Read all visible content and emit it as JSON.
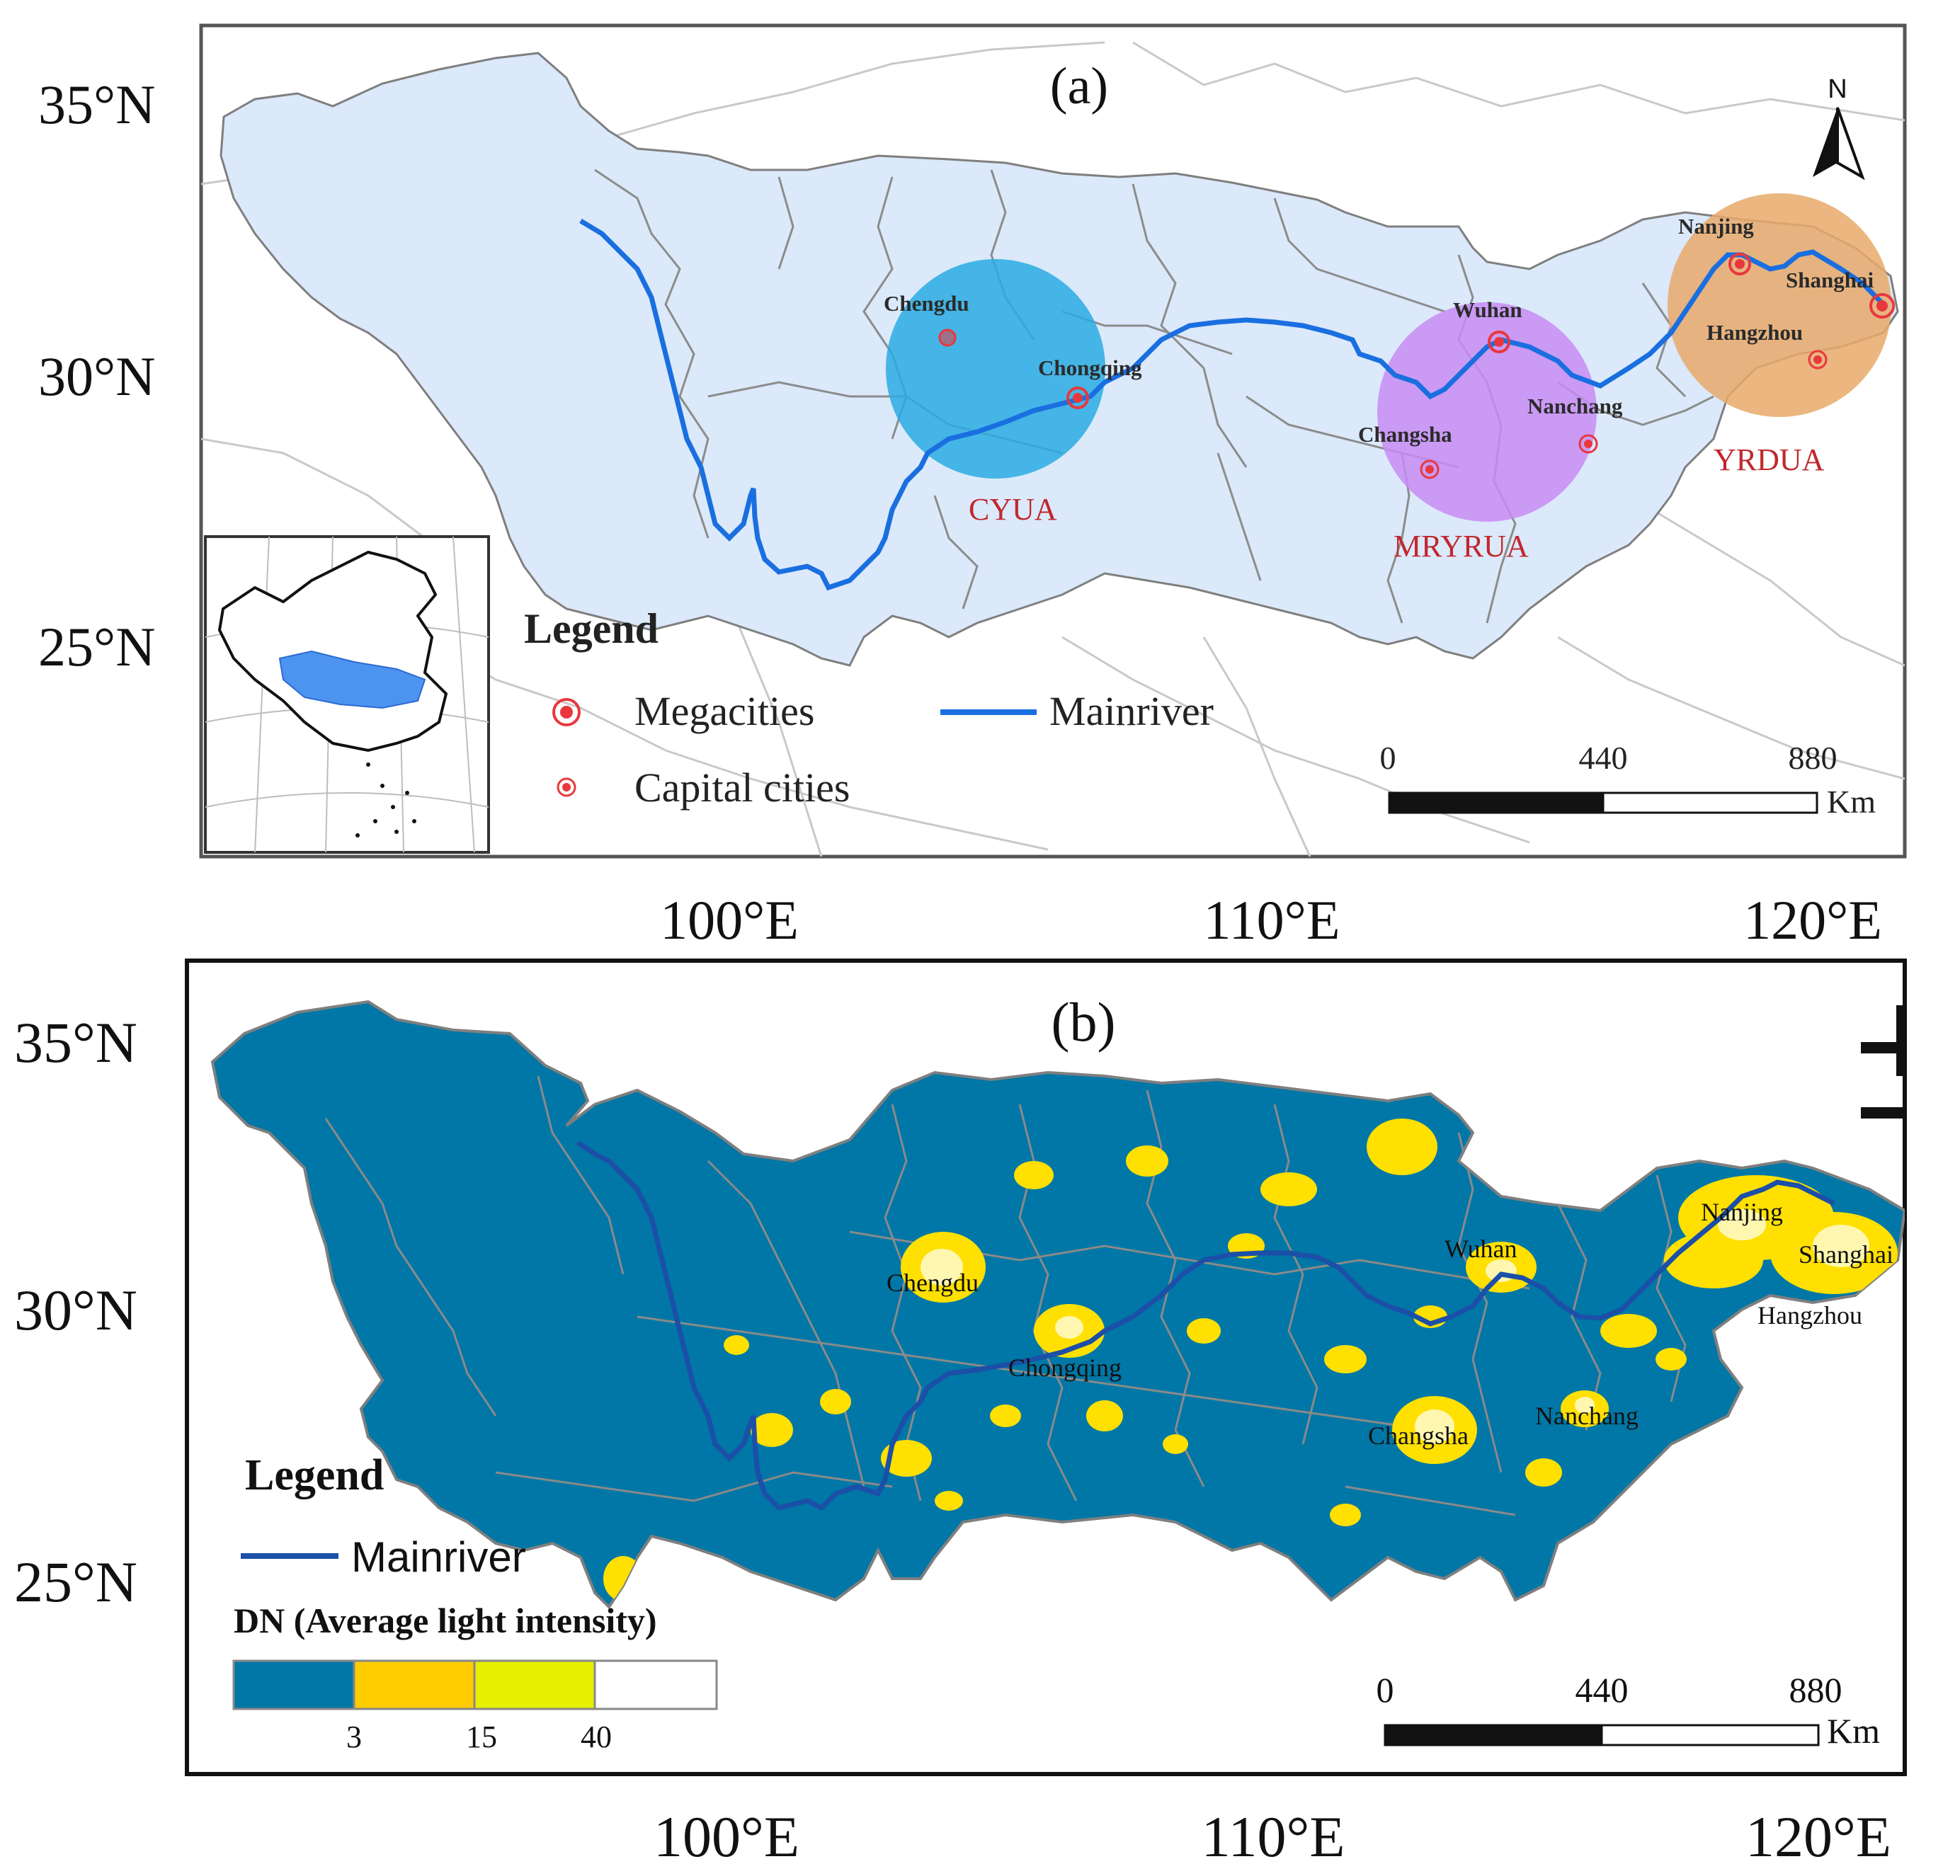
{
  "panel_a": {
    "label": "(a)",
    "north_label": "N",
    "lat_labels": [
      "35°N",
      "30°N",
      "25°N"
    ],
    "lon_labels": [
      "100°E",
      "110°E",
      "120°E"
    ],
    "cities": {
      "chengdu": "Chengdu",
      "chongqing": "Chongqing",
      "wuhan": "Wuhan",
      "changsha": "Changsha",
      "nanchang": "Nanchang",
      "nanjing": "Nanjing",
      "shanghai": "Shanghai",
      "hangzhou": "Hangzhou"
    },
    "regions": {
      "cyua": "CYUA",
      "mryrua": "MRYRUA",
      "yrdua": "YRDUA"
    },
    "legend": {
      "title": "Legend",
      "megacities": "Megacities",
      "capital_cities": "Capital cities",
      "mainriver": "Mainriver"
    },
    "scale": {
      "t0": "0",
      "t1": "440",
      "t2": "880",
      "unit": "Km"
    },
    "colors": {
      "basin": "#dbe9fa",
      "river": "#1a6fe0",
      "cyua": "#29abe2",
      "mryrua": "#c78cf2",
      "yrdua": "#e8a96a",
      "city": "#e8383d",
      "region_label": "#c0282d"
    }
  },
  "panel_b": {
    "label": "(b)",
    "lat_labels": [
      "35°N",
      "30°N",
      "25°N"
    ],
    "lon_labels": [
      "100°E",
      "110°E",
      "120°E"
    ],
    "cities": {
      "chengdu": "Chengdu",
      "chongqing": "Chongqing",
      "wuhan": "Wuhan",
      "changsha": "Changsha",
      "nanchang": "Nanchang",
      "nanjing": "Nanjing",
      "shanghai": "Shanghai",
      "hangzhou": "Hangzhou"
    },
    "legend": {
      "title": "Legend",
      "mainriver": "Mainriver",
      "dn_title": "DN (Average light intensity)",
      "dn_breaks": [
        "3",
        "15",
        "40"
      ],
      "dn_colors": [
        "#0077a6",
        "#ffcc00",
        "#e6f000",
        "#ffffff"
      ]
    },
    "scale": {
      "t0": "0",
      "t1": "440",
      "t2": "880",
      "unit": "Km"
    },
    "colors": {
      "basin": "#0077a6",
      "river": "#1b4fa8",
      "light": "#ffe000",
      "bright": "#fff7b0"
    }
  }
}
